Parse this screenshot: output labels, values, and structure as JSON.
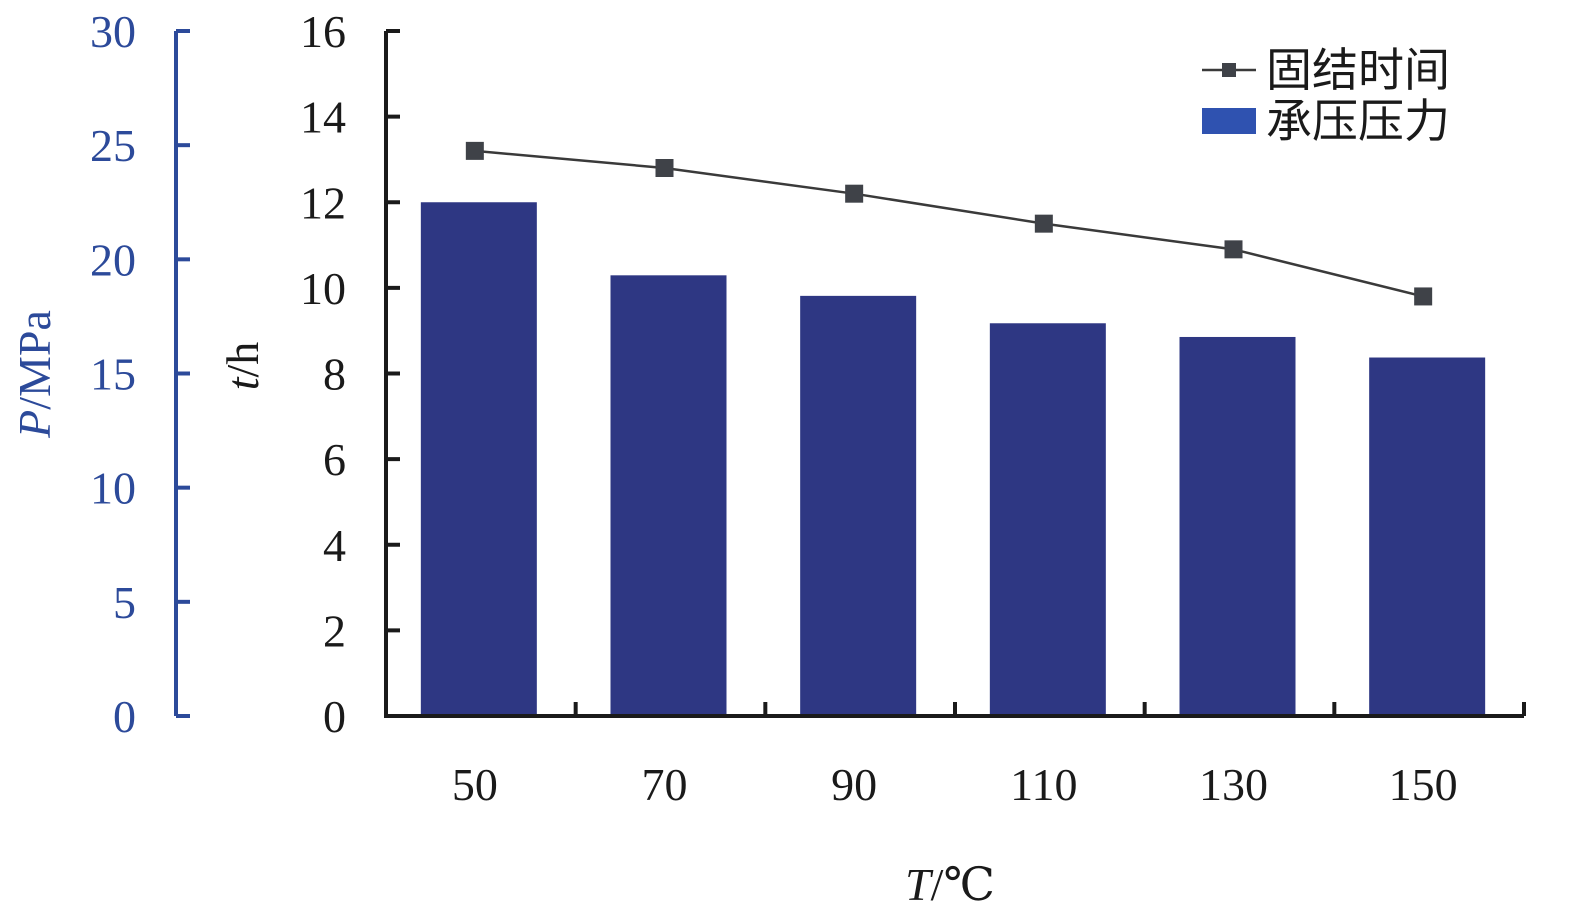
{
  "chart_data": {
    "type": "bar",
    "categories": [
      "50",
      "70",
      "90",
      "110",
      "130",
      "150"
    ],
    "x": [
      50,
      70,
      90,
      110,
      130,
      150
    ],
    "xlabel_var": "T",
    "xlabel_unit": "/℃",
    "series": [
      {
        "name": "承压压力",
        "kind": "bar",
        "axis": "left",
        "values": [
          22.5,
          19.3,
          18.4,
          17.2,
          16.6,
          15.7
        ]
      },
      {
        "name": "固结时间",
        "kind": "line",
        "axis": "right",
        "values": [
          13.2,
          12.8,
          12.2,
          11.5,
          10.9,
          9.8
        ]
      }
    ],
    "y_left": {
      "label_var": "P",
      "label_unit": "/MPa",
      "range": [
        0,
        30
      ],
      "ticks": [
        "0",
        "5",
        "10",
        "15",
        "20",
        "25",
        "30"
      ]
    },
    "y_right": {
      "label_var": "t",
      "label_unit": "/h",
      "range": [
        0,
        16
      ],
      "ticks": [
        "0",
        "2",
        "4",
        "6",
        "8",
        "10",
        "12",
        "14",
        "16"
      ]
    },
    "legend": {
      "placement": "top-right",
      "entries": [
        "固结时间",
        "承压压力"
      ]
    },
    "grid": false
  },
  "colors": {
    "bar": "#2e3783",
    "left_axis": "#2c4a9a",
    "line": "#3a3a3a",
    "marker": "#3f4248",
    "axis": "#1a1a1a",
    "legend_bar": "#2f52b0"
  }
}
